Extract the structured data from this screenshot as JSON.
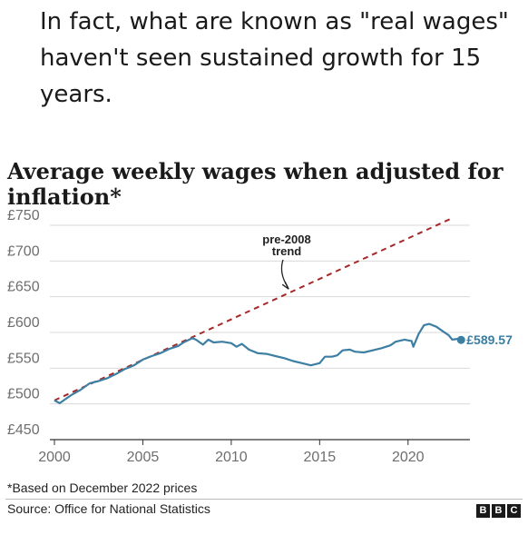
{
  "headline": "In fact, what are known as \"real wages\" haven't seen sustained growth for 15 years.",
  "footnote": "*Based on December 2022 prices",
  "source": "Source: Office for National Statistics",
  "logo": [
    "B",
    "B",
    "C"
  ],
  "colors": {
    "series": "#3d7fa3",
    "trend": "#a32a2a",
    "grid": "#d9d9d9",
    "axis": "#333333"
  },
  "chart_data": {
    "type": "line",
    "title": "Average weekly wages when adjusted for inflation*",
    "xlabel": "",
    "ylabel": "",
    "xlim": [
      2000,
      2023.5
    ],
    "ylim": [
      450,
      750
    ],
    "x_ticks": [
      2000,
      2005,
      2010,
      2015,
      2020
    ],
    "y_ticks": [
      {
        "value": 750,
        "label": "£750"
      },
      {
        "value": 700,
        "label": "£700"
      },
      {
        "value": 650,
        "label": "£650"
      },
      {
        "value": 600,
        "label": "£600"
      },
      {
        "value": 550,
        "label": "£550"
      },
      {
        "value": 500,
        "label": "£500"
      },
      {
        "value": 450,
        "label": "£450"
      }
    ],
    "grid": true,
    "annotations": [
      {
        "text_lines": [
          "pre-2008",
          "trend"
        ],
        "points_to": "trend line"
      },
      {
        "text": "£589.57",
        "x": 2023,
        "y": 589.57
      }
    ],
    "series": [
      {
        "values": [
          [
            2000,
            505
          ],
          [
            2000.3,
            501
          ],
          [
            2000.7,
            508
          ],
          [
            2001,
            513
          ],
          [
            2001.5,
            520
          ],
          [
            2002,
            529
          ],
          [
            2002.5,
            532
          ],
          [
            2003,
            536
          ],
          [
            2003.5,
            542
          ],
          [
            2004,
            549
          ],
          [
            2004.5,
            554
          ],
          [
            2005,
            562
          ],
          [
            2005.5,
            567
          ],
          [
            2006,
            571
          ],
          [
            2006.5,
            577
          ],
          [
            2007,
            581
          ],
          [
            2007.3,
            586
          ],
          [
            2007.8,
            592
          ],
          [
            2008,
            590
          ],
          [
            2008.4,
            583
          ],
          [
            2008.7,
            590
          ],
          [
            2009,
            586
          ],
          [
            2009.5,
            587
          ],
          [
            2010,
            585
          ],
          [
            2010.3,
            580
          ],
          [
            2010.6,
            584
          ],
          [
            2011,
            576
          ],
          [
            2011.5,
            571
          ],
          [
            2012,
            570
          ],
          [
            2012.5,
            567
          ],
          [
            2013,
            564
          ],
          [
            2013.5,
            560
          ],
          [
            2014,
            557
          ],
          [
            2014.5,
            554
          ],
          [
            2015,
            557
          ],
          [
            2015.3,
            566
          ],
          [
            2015.7,
            566
          ],
          [
            2016,
            568
          ],
          [
            2016.3,
            575
          ],
          [
            2016.7,
            576
          ],
          [
            2017,
            573
          ],
          [
            2017.5,
            572
          ],
          [
            2018,
            575
          ],
          [
            2018.5,
            578
          ],
          [
            2019,
            582
          ],
          [
            2019.3,
            587
          ],
          [
            2019.8,
            590
          ],
          [
            2020.2,
            588
          ],
          [
            2020.3,
            580
          ],
          [
            2020.6,
            598
          ],
          [
            2020.9,
            610
          ],
          [
            2021.2,
            612
          ],
          [
            2021.6,
            608
          ],
          [
            2022,
            601
          ],
          [
            2022.3,
            596
          ],
          [
            2022.5,
            590
          ],
          [
            2022.8,
            591
          ],
          [
            2023,
            589.57
          ]
        ]
      },
      {
        "style": "dashed",
        "values": [
          [
            2000,
            505
          ],
          [
            2022.5,
            760
          ]
        ]
      }
    ]
  }
}
